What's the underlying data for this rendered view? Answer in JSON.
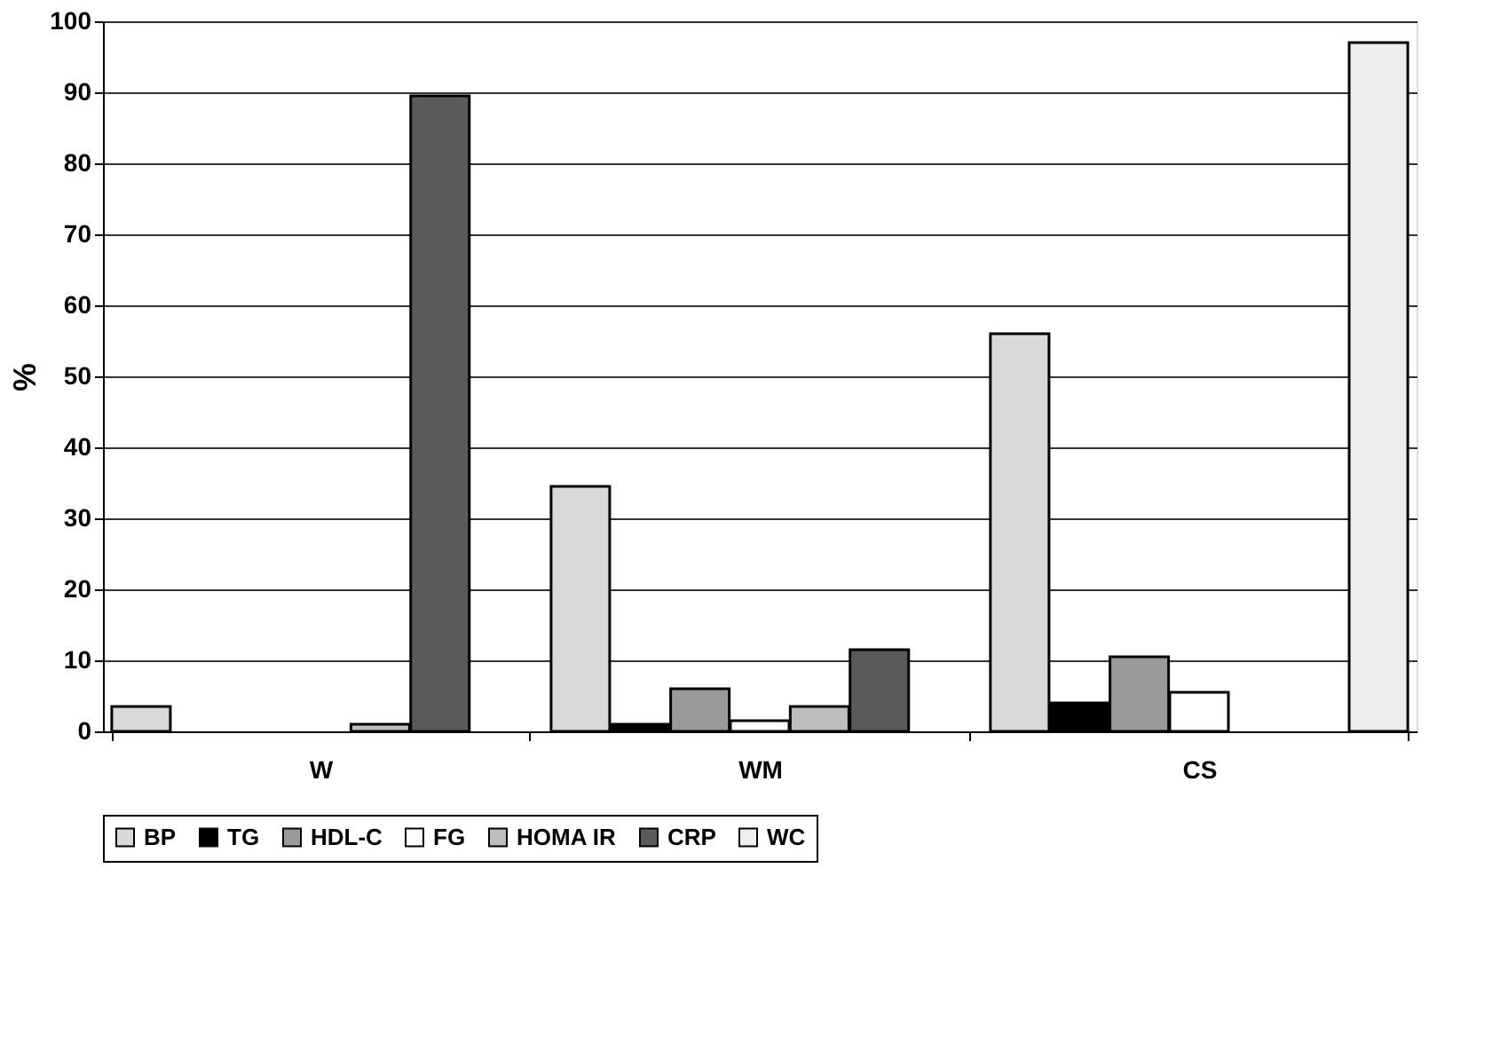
{
  "chart_data": {
    "type": "bar",
    "ylabel": "%",
    "categories": [
      "W",
      "WM",
      "CS"
    ],
    "ylim": [
      0,
      100
    ],
    "yticks": [
      0,
      10,
      20,
      30,
      40,
      50,
      60,
      70,
      80,
      90,
      100
    ],
    "grid": "y",
    "legend": "bottom",
    "series": [
      {
        "name": "BP",
        "color": "#d9d9d9",
        "values": [
          3.5,
          34.5,
          56
        ]
      },
      {
        "name": "TG",
        "color": "#000000",
        "values": [
          null,
          1,
          4
        ]
      },
      {
        "name": "HDL-C",
        "color": "#9a9a9a",
        "values": [
          null,
          6,
          10.5
        ]
      },
      {
        "name": "FG",
        "color": "#ffffff",
        "values": [
          null,
          1.5,
          5.5
        ]
      },
      {
        "name": "HOMA IR",
        "color": "#bdbdbd",
        "values": [
          1,
          3.5,
          null
        ]
      },
      {
        "name": "CRP",
        "color": "#5a5a5a",
        "values": [
          89.5,
          11.5,
          null
        ]
      },
      {
        "name": "WC",
        "color": "#eeeeee",
        "values": [
          null,
          null,
          97
        ]
      }
    ]
  }
}
